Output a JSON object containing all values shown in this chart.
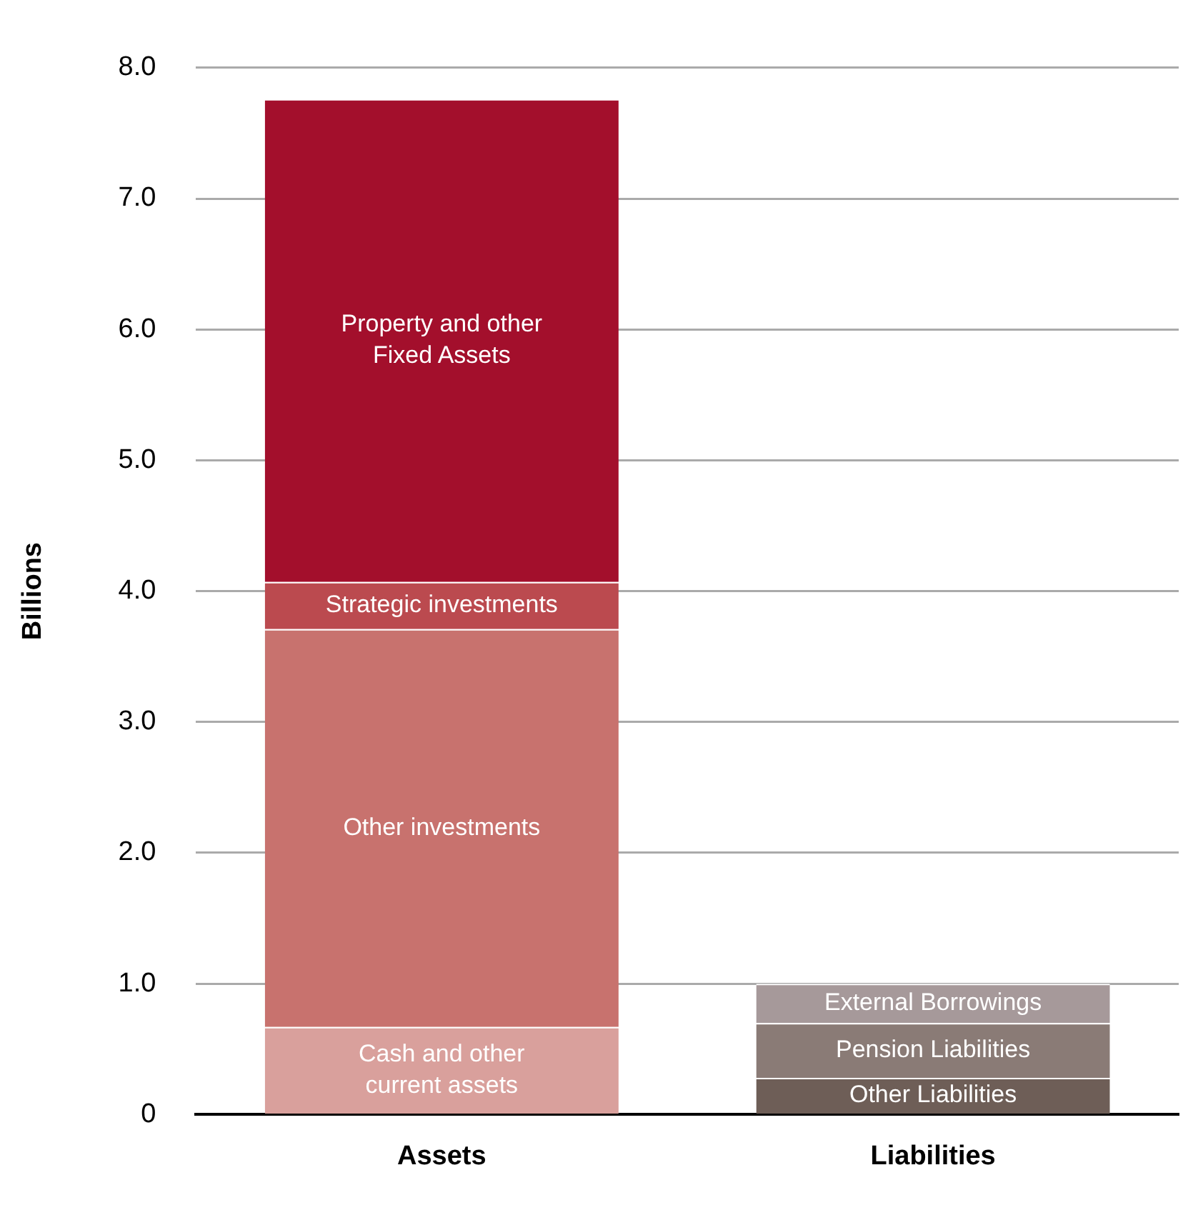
{
  "chart_data": {
    "type": "bar",
    "stacked": true,
    "ylabel": "Billions",
    "categories": [
      "Assets",
      "Liabilities"
    ],
    "series": [
      {
        "name": "Cash and other current assets",
        "color": "#d9a09c",
        "values": [
          0.67,
          null
        ]
      },
      {
        "name": "Other investments",
        "color": "#c8726e",
        "values": [
          3.04,
          null
        ]
      },
      {
        "name": "Strategic investments",
        "color": "#bb4a4f",
        "values": [
          0.36,
          null
        ]
      },
      {
        "name": "Property and other Fixed Assets",
        "color": "#a30f2c",
        "values": [
          3.69,
          null
        ]
      },
      {
        "name": "Other Liabilities",
        "color": "#6e5e57",
        "values": [
          null,
          0.28
        ]
      },
      {
        "name": "Pension Liabilities",
        "color": "#8a7b76",
        "values": [
          null,
          0.42
        ]
      },
      {
        "name": "External Borrowings",
        "color": "#a6999a",
        "values": [
          null,
          0.3
        ]
      }
    ],
    "ylim": [
      0,
      8
    ],
    "yticks": [
      0,
      {
        "value": 1,
        "label": "1.0"
      },
      {
        "value": 2,
        "label": "2.0"
      },
      {
        "value": 3,
        "label": "3.0"
      },
      {
        "value": 4,
        "label": "4.0"
      },
      {
        "value": 5,
        "label": "5.0"
      },
      {
        "value": 6,
        "label": "6.0"
      },
      {
        "value": 7,
        "label": "7.0"
      },
      {
        "value": 8,
        "label": "8.0"
      }
    ],
    "grid": "y",
    "legend": false
  }
}
